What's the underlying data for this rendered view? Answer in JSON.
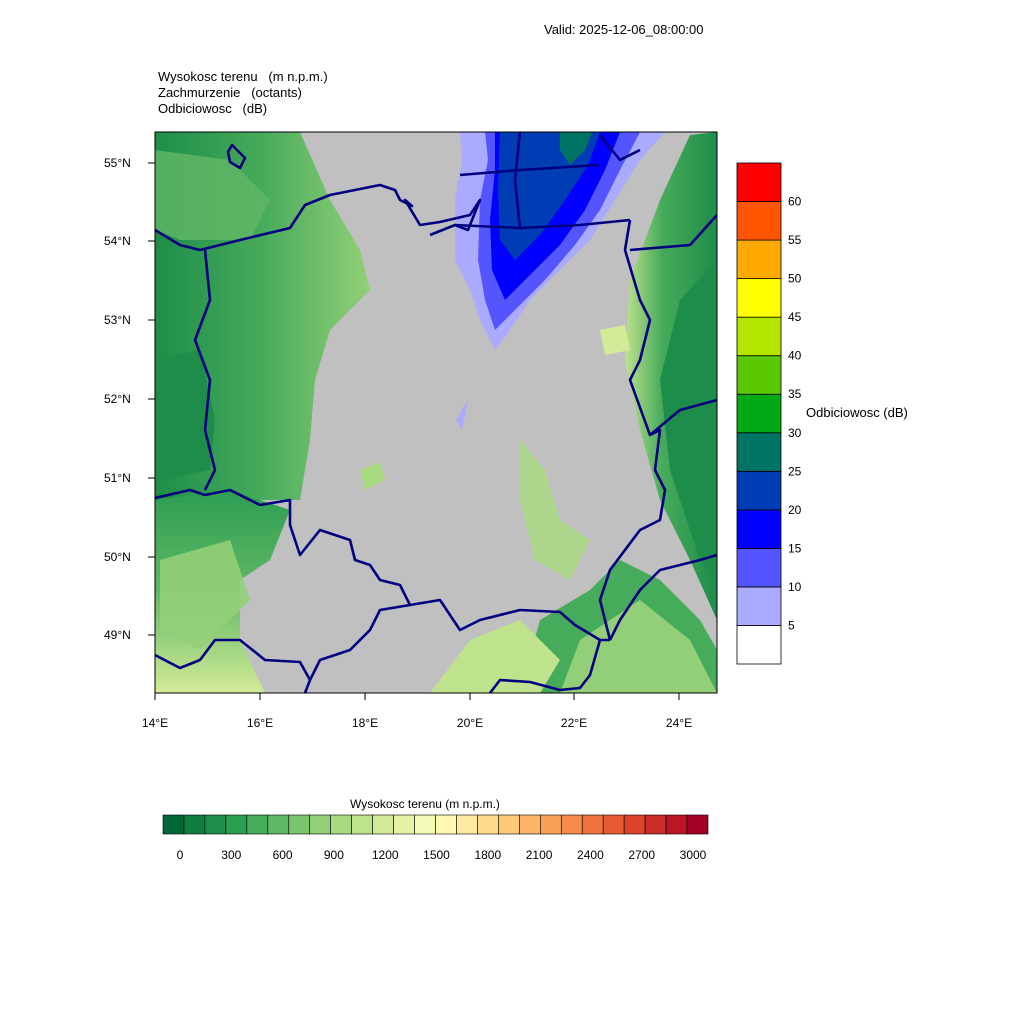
{
  "valid_label": "Valid: 2025-12-06_08:00:00",
  "titles": {
    "line1": "Wysokosc terenu   (m n.p.m.)",
    "line2": "Zachmurzenie   (octants)",
    "line3": "Odbiciowosc   (dB)"
  },
  "axes": {
    "lat_ticks": [
      "55°N",
      "54°N",
      "53°N",
      "52°N",
      "51°N",
      "50°N",
      "49°N"
    ],
    "lon_ticks": [
      "14°E",
      "16°E",
      "18°E",
      "20°E",
      "22°E",
      "24°E"
    ]
  },
  "colors": {
    "cloud_gray": "#c0c0c0",
    "border_navy": "#000080"
  },
  "reflectivity_bar": {
    "title": "Odbiciowosc  (dB)",
    "labels": [
      "60",
      "55",
      "50",
      "45",
      "40",
      "35",
      "30",
      "25",
      "20",
      "15",
      "10",
      "5"
    ],
    "colors": [
      "#ffffff",
      "#aaaaff",
      "#5555ff",
      "#0000ff",
      "#003cb4",
      "#007464",
      "#00aa14",
      "#5ac800",
      "#b4e600",
      "#ffff00",
      "#ffaa00",
      "#ff5500",
      "#ff0000"
    ]
  },
  "terrain_bar": {
    "title": "Wysokosc terenu  (m n.p.m.)",
    "labels": [
      "0",
      "300",
      "600",
      "900",
      "1200",
      "1500",
      "1800",
      "2100",
      "2400",
      "2700",
      "3000"
    ],
    "colors": [
      "#006837",
      "#0f7d40",
      "#1d8d49",
      "#2d9e51",
      "#47ab5c",
      "#61b866",
      "#7bc56f",
      "#93cf78",
      "#aad983",
      "#bfe28c",
      "#d3eb98",
      "#e5f3a6",
      "#f4f9b3",
      "#fff8b3",
      "#fee9a0",
      "#fdd98c",
      "#fdc878",
      "#fcb567",
      "#f9a057",
      "#f68a4b",
      "#f0723f",
      "#e75a35",
      "#db432d",
      "#cc2c27",
      "#bb1626",
      "#a50026"
    ]
  }
}
